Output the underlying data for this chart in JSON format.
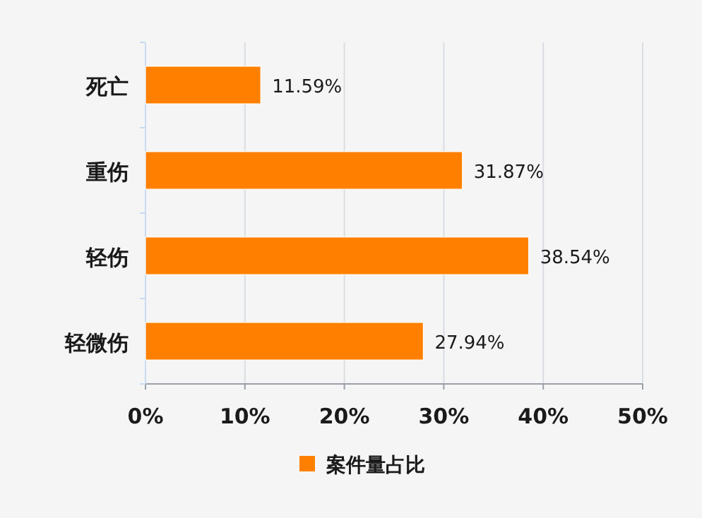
{
  "chart_data": {
    "type": "bar",
    "orientation": "horizontal",
    "categories": [
      "死亡",
      "重伤",
      "轻伤",
      "轻微伤"
    ],
    "series": [
      {
        "name": "案件量占比",
        "color": "#ff8000",
        "values": [
          11.59,
          31.87,
          38.54,
          27.94
        ],
        "value_labels": [
          "11.59%",
          "31.87%",
          "38.54%",
          "27.94%"
        ]
      }
    ],
    "xlim": [
      0,
      50
    ],
    "xticks": [
      {
        "value": 0,
        "label": "0%"
      },
      {
        "value": 10,
        "label": "10%"
      },
      {
        "value": 20,
        "label": "20%"
      },
      {
        "value": 30,
        "label": "30%"
      },
      {
        "value": 40,
        "label": "40%"
      },
      {
        "value": 50,
        "label": "50%"
      }
    ],
    "grid": "x",
    "legend": "bottom"
  }
}
